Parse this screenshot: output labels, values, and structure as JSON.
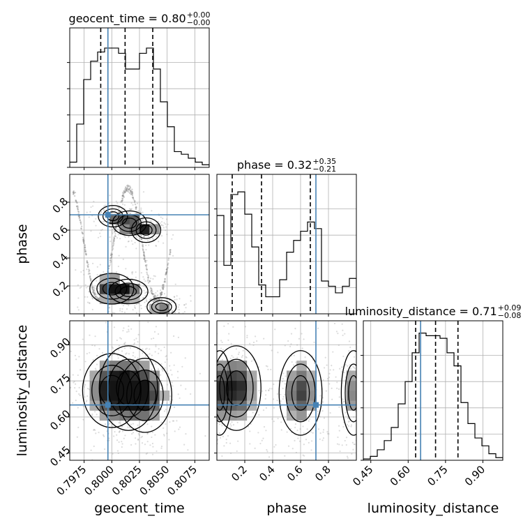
{
  "chart_data": {
    "type": "corner",
    "parameters": [
      "geocent_time",
      "phase",
      "luminosity_distance"
    ],
    "truth_color": "#4682b4",
    "grid": true,
    "marginals": [
      {
        "param": "geocent_time",
        "title_prefix": "geocent_time = 0.80",
        "title_sup": "+0.00",
        "title_sub": "−0.00",
        "xlim": [
          0.7962,
          0.8088
        ],
        "truth": 0.79965,
        "quantiles": [
          0.799,
          0.8012,
          0.8037
        ],
        "bin_edges": [
          0.7962,
          0.79683,
          0.79746,
          0.79809,
          0.79872,
          0.79935,
          0.79998,
          0.80061,
          0.80124,
          0.80187,
          0.8025,
          0.80313,
          0.80376,
          0.80439,
          0.80502,
          0.80565,
          0.80628,
          0.80691,
          0.80754,
          0.80817,
          0.8088
        ],
        "counts": [
          0.04,
          0.33,
          0.67,
          0.81,
          0.88,
          0.91,
          0.91,
          0.87,
          0.75,
          0.75,
          0.87,
          0.91,
          0.75,
          0.5,
          0.31,
          0.12,
          0.1,
          0.07,
          0.04,
          0.02
        ]
      },
      {
        "param": "phase",
        "title_prefix": "phase = 0.32",
        "title_sup": "+0.35",
        "title_sub": "−0.21",
        "xlim": [
          0.0,
          1.0
        ],
        "truth": 0.71,
        "quantiles": [
          0.11,
          0.32,
          0.67
        ],
        "bin_edges": [
          0.0,
          0.05,
          0.1,
          0.15,
          0.2,
          0.25,
          0.3,
          0.35,
          0.4,
          0.45,
          0.5,
          0.55,
          0.6,
          0.65,
          0.7,
          0.75,
          0.8,
          0.85,
          0.9,
          0.95,
          1.0
        ],
        "counts": [
          0.75,
          0.37,
          0.91,
          0.93,
          0.76,
          0.51,
          0.22,
          0.13,
          0.13,
          0.26,
          0.47,
          0.56,
          0.63,
          0.7,
          0.65,
          0.25,
          0.21,
          0.16,
          0.21,
          0.27
        ]
      },
      {
        "param": "luminosity_distance",
        "title_prefix": "luminosity_distance = 0.71",
        "title_sup": "+0.09",
        "title_sub": "−0.08",
        "xlim": [
          0.42,
          0.98
        ],
        "truth": 0.65,
        "quantiles": [
          0.63,
          0.71,
          0.8
        ],
        "bin_edges": [
          0.42,
          0.448,
          0.476,
          0.504,
          0.532,
          0.56,
          0.588,
          0.616,
          0.644,
          0.672,
          0.7,
          0.728,
          0.756,
          0.784,
          0.812,
          0.84,
          0.868,
          0.896,
          0.924,
          0.952,
          0.98
        ],
        "counts": [
          0.01,
          0.03,
          0.08,
          0.15,
          0.25,
          0.43,
          0.6,
          0.82,
          0.97,
          0.95,
          0.95,
          0.93,
          0.82,
          0.72,
          0.44,
          0.28,
          0.17,
          0.11,
          0.05,
          0.02
        ]
      }
    ],
    "joints": [
      {
        "x_param": "geocent_time",
        "y_param": "phase",
        "xlim": [
          0.7962,
          0.8088
        ],
        "ylim": [
          0.0,
          1.0
        ],
        "truth": [
          0.79965,
          0.71
        ],
        "ridge": {
          "kind": "sin",
          "y0": 0.5,
          "amp": 0.4,
          "freq": 2.4,
          "phase": 1.5708,
          "x_start": 0.7965,
          "x_end": 0.8053,
          "label": "y = 0.5 + 0.4·sin(2π·f·(x−0.7962)/0.0126 + φ)"
        },
        "density_blobs": [
          {
            "cx": 0.8001,
            "cy": 0.7,
            "sx": 0.0006,
            "sy": 0.035,
            "w": 0.6
          },
          {
            "cx": 0.8016,
            "cy": 0.65,
            "sx": 0.0007,
            "sy": 0.04,
            "w": 1.0
          },
          {
            "cx": 0.8031,
            "cy": 0.6,
            "sx": 0.0006,
            "sy": 0.04,
            "w": 0.9
          },
          {
            "cx": 0.8,
            "cy": 0.18,
            "sx": 0.0009,
            "sy": 0.05,
            "w": 1.0
          },
          {
            "cx": 0.8015,
            "cy": 0.16,
            "sx": 0.0008,
            "sy": 0.04,
            "w": 0.7
          },
          {
            "cx": 0.8045,
            "cy": 0.05,
            "sx": 0.0006,
            "sy": 0.03,
            "w": 0.6
          }
        ]
      },
      {
        "x_param": "geocent_time",
        "y_param": "luminosity_distance",
        "xlim": [
          0.7962,
          0.8088
        ],
        "ylim": [
          0.42,
          1.0
        ],
        "truth": [
          0.79965,
          0.65
        ],
        "density_blobs": [
          {
            "cx": 0.8,
            "cy": 0.71,
            "sx": 0.0012,
            "sy": 0.07,
            "w": 1.0
          },
          {
            "cx": 0.803,
            "cy": 0.69,
            "sx": 0.0011,
            "sy": 0.07,
            "w": 0.9
          },
          {
            "cx": 0.8015,
            "cy": 0.72,
            "sx": 0.0012,
            "sy": 0.08,
            "w": 0.6
          }
        ]
      },
      {
        "x_param": "phase",
        "y_param": "luminosity_distance",
        "xlim": [
          0.0,
          1.0
        ],
        "ylim": [
          0.42,
          1.0
        ],
        "truth": [
          0.71,
          0.65
        ],
        "density_blobs": [
          {
            "cx": 0.14,
            "cy": 0.72,
            "sx": 0.08,
            "sy": 0.08,
            "w": 1.0
          },
          {
            "cx": 0.6,
            "cy": 0.7,
            "sx": 0.07,
            "sy": 0.08,
            "w": 0.8
          },
          {
            "cx": 0.98,
            "cy": 0.7,
            "sx": 0.04,
            "sy": 0.08,
            "w": 0.5
          },
          {
            "cx": 0.02,
            "cy": 0.7,
            "sx": 0.04,
            "sy": 0.08,
            "w": 0.5
          }
        ]
      }
    ],
    "x_ticks": {
      "geocent_time": [
        "0.7975",
        "0.8000",
        "0.8025",
        "0.8050",
        "0.8075"
      ],
      "phase": [
        "0.2",
        "0.4",
        "0.6",
        "0.8"
      ],
      "luminosity_distance": [
        "0.45",
        "0.60",
        "0.75",
        "0.90"
      ]
    },
    "y_ticks": {
      "phase": [
        "0.2",
        "0.4",
        "0.6",
        "0.8"
      ],
      "luminosity_distance": [
        "0.45",
        "0.60",
        "0.75",
        "0.90"
      ]
    },
    "xlabels": [
      "geocent_time",
      "phase",
      "luminosity_distance"
    ],
    "ylabels": [
      "phase",
      "luminosity_distance"
    ]
  }
}
